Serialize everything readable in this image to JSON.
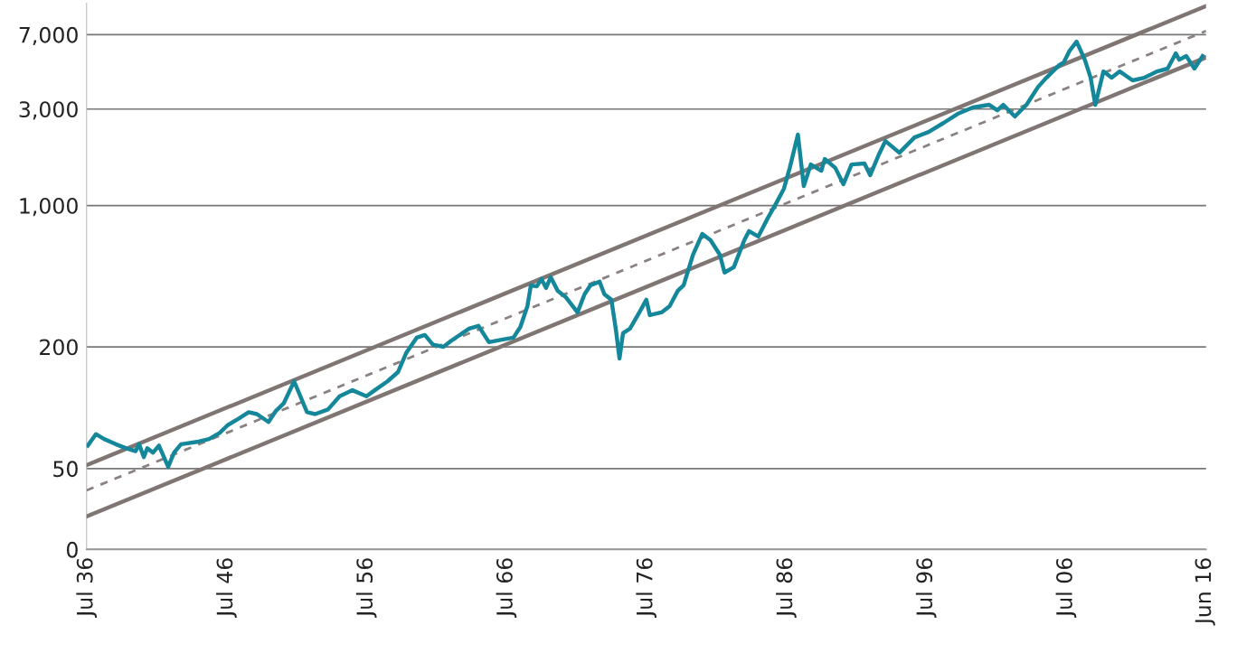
{
  "chart_data": {
    "type": "line",
    "log": "y",
    "grid": "y",
    "marker": "none",
    "xlim": [
      "1936-07",
      "2016-07"
    ],
    "xticks": [
      {
        "value": "1936-07",
        "label": "Jul 36"
      },
      {
        "value": "1946-07",
        "label": "Jul 46"
      },
      {
        "value": "1956-07",
        "label": "Jul 56"
      },
      {
        "value": "1966-07",
        "label": "Jul 66"
      },
      {
        "value": "1976-07",
        "label": "Jul 76"
      },
      {
        "value": "1986-07",
        "label": "Jul 86"
      },
      {
        "value": "1996-07",
        "label": "Jul 96"
      },
      {
        "value": "2006-07",
        "label": "Jul 06"
      },
      {
        "value": "2016-06",
        "label": "Jun 16"
      }
    ],
    "ylim": [
      0,
      10000
    ],
    "yticks": [
      0,
      {
        "value": 50,
        "label": "50"
      },
      {
        "value": 200,
        "label": "200"
      },
      {
        "value": 1000,
        "label": "1,000"
      },
      {
        "value": 3000,
        "label": "3,000"
      },
      {
        "value": 7000,
        "label": "7,000"
      }
    ],
    "series": [
      {
        "color": "#7f7673",
        "line_style": "solid",
        "x": [
          "1936-07",
          "2016-07"
        ],
        "values": [
          52,
          9700
        ]
      },
      {
        "color": "#7f7673",
        "line_style": "solid",
        "x": [
          "1936-07",
          "2016-07"
        ],
        "values": [
          29,
          5400
        ]
      },
      {
        "color": "#8a8280",
        "line_style": "dashed",
        "x": [
          "1936-07",
          "2016-07"
        ],
        "values": [
          39,
          7300
        ]
      },
      {
        "color": "#14879a",
        "line_style": "solid",
        "x": [
          "1936-08",
          "1937-03",
          "1937-10",
          "1938-08",
          "1939-05",
          "1940-01",
          "1940-04",
          "1940-08",
          "1940-11",
          "1941-04",
          "1941-09",
          "1942-05",
          "1942-10",
          "1943-04",
          "1944-07",
          "1945-04",
          "1946-01",
          "1946-08",
          "1947-05",
          "1948-02",
          "1948-09",
          "1949-07",
          "1950-01",
          "1950-08",
          "1951-05",
          "1952-04",
          "1952-11",
          "1953-10",
          "1954-08",
          "1955-07",
          "1956-07",
          "1957-02",
          "1958-01",
          "1958-10",
          "1959-05",
          "1960-02",
          "1960-09",
          "1961-04",
          "1962-01",
          "1962-08",
          "1963-11",
          "1964-07",
          "1965-04",
          "1966-03",
          "1967-01",
          "1967-07",
          "1968-01",
          "1968-04",
          "1968-09",
          "1969-01",
          "1969-05",
          "1969-09",
          "1970-03",
          "1970-10",
          "1971-08",
          "1972-02",
          "1972-07",
          "1973-03",
          "1973-07",
          "1974-01",
          "1974-05",
          "1974-08",
          "1974-11",
          "1975-05",
          "1976-01",
          "1976-07",
          "1976-10",
          "1977-08",
          "1978-03",
          "1978-10",
          "1979-03",
          "1979-11",
          "1980-07",
          "1981-02",
          "1981-10",
          "1982-02",
          "1982-10",
          "1983-07",
          "1983-11",
          "1984-07",
          "1985-03",
          "1985-10",
          "1986-05",
          "1986-10",
          "1987-05",
          "1987-10",
          "1988-04",
          "1989-01",
          "1989-04",
          "1990-01",
          "1990-08",
          "1991-03",
          "1992-02",
          "1992-07",
          "1993-02",
          "1993-08",
          "1994-08",
          "1995-09",
          "1996-09",
          "1997-10",
          "1998-10",
          "1999-11",
          "2001-01",
          "2001-08",
          "2002-01",
          "2002-11",
          "2003-09",
          "2004-07",
          "2005-02",
          "2006-01",
          "2006-05",
          "2006-10",
          "2007-04",
          "2007-11",
          "2008-04",
          "2008-08",
          "2009-03",
          "2009-10",
          "2010-05",
          "2011-04",
          "2012-02",
          "2013-01",
          "2013-10",
          "2014-05",
          "2014-08",
          "2015-02",
          "2015-09",
          "2016-04"
        ],
        "values": [
          65,
          74,
          70,
          66,
          63,
          61,
          66,
          57,
          63,
          60,
          65,
          51,
          60,
          66,
          68,
          70,
          75,
          82,
          88,
          95,
          93,
          85,
          96,
          105,
          135,
          95,
          93,
          98,
          114,
          122,
          114,
          122,
          135,
          150,
          186,
          222,
          229,
          205,
          200,
          215,
          246,
          254,
          211,
          217,
          222,
          251,
          318,
          403,
          398,
          433,
          391,
          442,
          379,
          352,
          296,
          364,
          403,
          420,
          364,
          342,
          241,
          175,
          234,
          246,
          296,
          342,
          287,
          296,
          318,
          379,
          403,
          571,
          724,
          673,
          571,
          466,
          495,
          673,
          747,
          702,
          863,
          1017,
          1211,
          1535,
          2244,
          1248,
          1596,
          1486,
          1698,
          1535,
          1274,
          1596,
          1614,
          1413,
          1770,
          2084,
          1824,
          2173,
          2312,
          2564,
          2840,
          3055,
          3148,
          2958,
          3148,
          2754,
          3148,
          3864,
          4285,
          4943,
          5105,
          5834,
          6457,
          5260,
          4285,
          3148,
          4603,
          4285,
          4603,
          4159,
          4285,
          4603,
          4753,
          5649,
          5260,
          5483,
          4753,
          5483
        ]
      }
    ]
  }
}
